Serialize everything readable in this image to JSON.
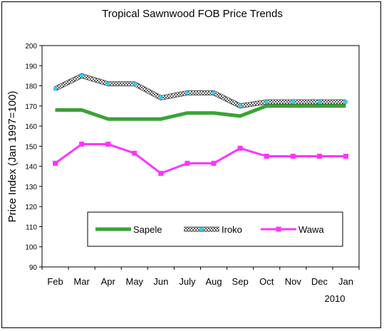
{
  "chart_data": {
    "type": "line",
    "title": "Tropical Sawnwood FOB Price Trends",
    "ylabel": "Price Index (Jan 1997=100)",
    "xlabel": "",
    "year_label": "2010",
    "categories": [
      "Feb",
      "Mar",
      "Apr",
      "May",
      "Jun",
      "July",
      "Aug",
      "Sep",
      "Oct",
      "Nov",
      "Dec",
      "Jan"
    ],
    "ylim": [
      90,
      200
    ],
    "yticks": [
      90,
      100,
      110,
      120,
      130,
      140,
      150,
      160,
      170,
      180,
      190,
      200
    ],
    "grid": false,
    "legend_position": "bottom-center",
    "series": [
      {
        "name": "Sapele",
        "color": "#3aa335",
        "marker": "none",
        "values": [
          168,
          168,
          163.5,
          163.5,
          163.5,
          166.5,
          166.5,
          165,
          170,
          170,
          170,
          170
        ]
      },
      {
        "name": "Iroko",
        "color": "#888888",
        "marker": "square-cyan",
        "marker_color": "#33ccee",
        "values": [
          178.5,
          185,
          181,
          181,
          174,
          176.5,
          176.5,
          170,
          172,
          172,
          172,
          172
        ]
      },
      {
        "name": "Wawa",
        "color": "#ff33ff",
        "marker": "square",
        "values": [
          141.5,
          151,
          151,
          146.5,
          136.5,
          141.5,
          141.5,
          149,
          145,
          145,
          145,
          145
        ]
      }
    ]
  }
}
